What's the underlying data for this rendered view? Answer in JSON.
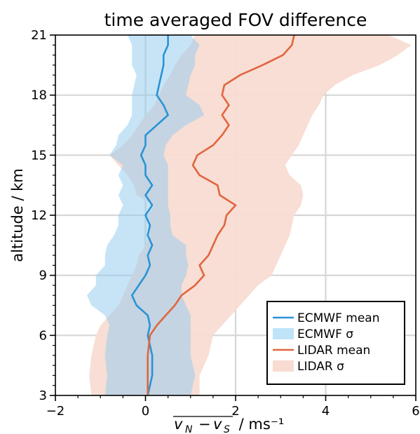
{
  "chart_data": {
    "type": "line",
    "title": "time averaged FOV difference",
    "xlabel": "v_N − v_S / ms⁻¹",
    "xlabel_unit": " / ms⁻¹",
    "ylabel": "altitude / km",
    "xlim": [
      -2,
      6
    ],
    "ylim": [
      3,
      21
    ],
    "xticks": [
      -2,
      0,
      2,
      4,
      6
    ],
    "yticks": [
      3,
      6,
      9,
      12,
      15,
      18,
      21
    ],
    "xtick_labels": [
      "−2",
      "0",
      "2",
      "4",
      "6"
    ],
    "ytick_labels": [
      "3",
      "6",
      "9",
      "12",
      "15",
      "18",
      "21"
    ],
    "grid": true,
    "legend_position": "lower right",
    "altitude": [
      3,
      4,
      5,
      6,
      6.5,
      7,
      7.5,
      8,
      8.5,
      9,
      9.5,
      10,
      10.5,
      11,
      11.5,
      12,
      12.5,
      13,
      13.5,
      14,
      14.5,
      15,
      15.5,
      16,
      16.5,
      17,
      17.5,
      18,
      18.5,
      19,
      19.5,
      20,
      20.5,
      21
    ],
    "series": [
      {
        "name": "ECMWF mean",
        "kind": "line",
        "color": "#2a93d5",
        "x": [
          0.05,
          0.15,
          0.15,
          0.05,
          0.1,
          0.05,
          -0.2,
          -0.3,
          -0.15,
          0.0,
          0.1,
          0.05,
          0.15,
          0.05,
          0.1,
          0.0,
          0.15,
          0.0,
          0.15,
          0.0,
          0.0,
          -0.1,
          0.0,
          0.0,
          0.25,
          0.5,
          0.4,
          0.25,
          0.3,
          0.35,
          0.4,
          0.4,
          0.5,
          0.5
        ]
      },
      {
        "name": "ECMWF σ",
        "kind": "band",
        "color": "#bfe3f8",
        "lower": [
          -0.9,
          -0.85,
          -0.9,
          -0.85,
          -0.8,
          -0.9,
          -1.2,
          -1.3,
          -1.1,
          -1.1,
          -0.9,
          -0.9,
          -0.85,
          -0.7,
          -0.6,
          -0.6,
          -0.5,
          -0.6,
          -0.5,
          -0.6,
          -0.5,
          -0.8,
          -0.65,
          -0.6,
          -0.4,
          -0.3,
          -0.3,
          -0.3,
          -0.25,
          -0.2,
          -0.3,
          -0.3,
          -0.3,
          -0.4
        ],
        "upper": [
          1.0,
          1.1,
          1.0,
          1.0,
          1.0,
          1.0,
          0.9,
          0.8,
          0.8,
          0.9,
          0.95,
          0.9,
          0.9,
          0.6,
          0.55,
          0.55,
          0.5,
          0.5,
          0.5,
          0.5,
          0.5,
          0.4,
          0.45,
          0.6,
          0.9,
          1.3,
          1.2,
          0.9,
          0.95,
          1.0,
          1.1,
          1.1,
          1.2,
          1.0
        ]
      },
      {
        "name": "LIDAR mean",
        "kind": "line",
        "color": "#e0663f",
        "x": [
          0.05,
          0.05,
          0.05,
          0.1,
          0.25,
          0.45,
          0.65,
          0.8,
          1.1,
          1.3,
          1.2,
          1.4,
          1.5,
          1.6,
          1.75,
          1.8,
          2.0,
          1.65,
          1.6,
          1.2,
          1.05,
          1.15,
          1.5,
          1.7,
          1.85,
          1.7,
          1.85,
          1.7,
          1.75,
          2.1,
          2.6,
          3.05,
          3.25,
          3.3
        ]
      },
      {
        "name": "LIDAR σ",
        "kind": "band",
        "color": "#f8dcd2",
        "lower": [
          -1.2,
          -1.25,
          -1.2,
          -1.1,
          -1.0,
          -0.8,
          -0.6,
          -0.5,
          -0.4,
          -0.3,
          -0.2,
          -0.15,
          0.0,
          0.1,
          0.1,
          0.05,
          0.2,
          -0.2,
          -0.25,
          -0.4,
          -0.6,
          -0.8,
          -0.5,
          -0.3,
          -0.15,
          0.0,
          0.2,
          0.3,
          0.4,
          0.55,
          0.65,
          0.8,
          1.0,
          1.1
        ],
        "upper": [
          1.2,
          1.2,
          1.4,
          1.5,
          1.7,
          1.9,
          2.1,
          2.3,
          2.5,
          2.8,
          2.9,
          3.0,
          3.1,
          3.2,
          3.25,
          3.3,
          3.45,
          3.5,
          3.45,
          3.2,
          3.1,
          3.25,
          3.4,
          3.5,
          3.6,
          3.7,
          3.85,
          3.95,
          4.2,
          4.6,
          5.2,
          5.6,
          5.9,
          5.4
        ]
      }
    ],
    "legend": [
      "ECMWF mean",
      "ECMWF σ",
      "LIDAR mean",
      "LIDAR σ"
    ]
  }
}
